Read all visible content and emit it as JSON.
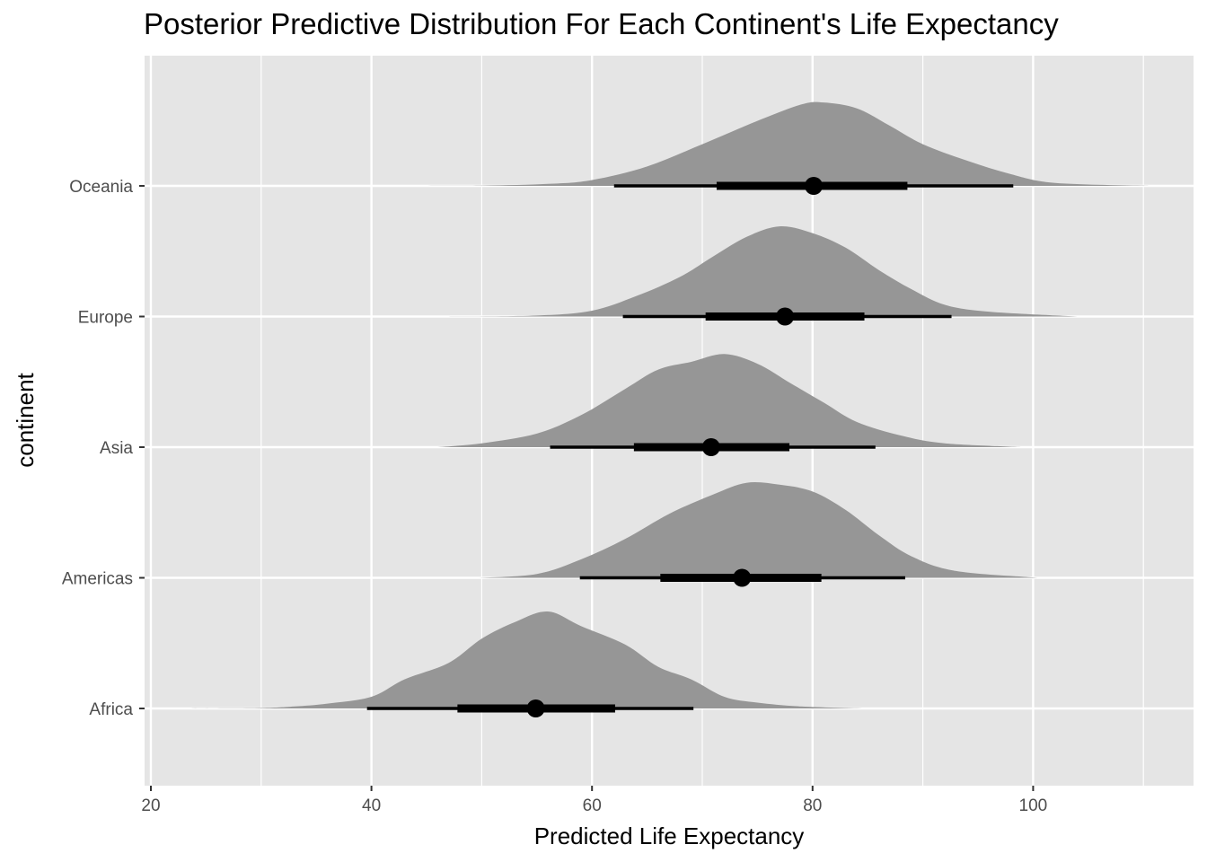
{
  "chart_data": {
    "type": "ridgeline-halfeye",
    "title": "Posterior Predictive Distribution For Each Continent's Life Expectancy",
    "xlabel": "Predicted Life Expectancy",
    "ylabel": "continent",
    "xlim": [
      19.5,
      114
    ],
    "x_ticks": [
      20,
      40,
      60,
      80,
      100
    ],
    "grid": true,
    "colors": {
      "panel": "#e5e5e5",
      "grid": "#ffffff",
      "density": "#969696",
      "interval": "#000000"
    },
    "categories": [
      "Africa",
      "Americas",
      "Asia",
      "Europe",
      "Oceania"
    ],
    "series": [
      {
        "name": "Africa",
        "median": 54.9,
        "interval_66": [
          47.8,
          62.1
        ],
        "interval_95": [
          39.6,
          69.2
        ],
        "density": [
          [
            23.5,
            0
          ],
          [
            30,
            0.005
          ],
          [
            33,
            0.02
          ],
          [
            36,
            0.05
          ],
          [
            40,
            0.12
          ],
          [
            43,
            0.3
          ],
          [
            47,
            0.47
          ],
          [
            50,
            0.72
          ],
          [
            53,
            0.89
          ],
          [
            56,
            1.0
          ],
          [
            59,
            0.85
          ],
          [
            63,
            0.66
          ],
          [
            66,
            0.43
          ],
          [
            69,
            0.3
          ],
          [
            72,
            0.12
          ],
          [
            75,
            0.06
          ],
          [
            79,
            0.02
          ],
          [
            84.5,
            0
          ]
        ]
      },
      {
        "name": "Americas",
        "median": 73.6,
        "interval_66": [
          66.2,
          80.8
        ],
        "interval_95": [
          58.9,
          88.4
        ],
        "density": [
          [
            49.8,
            0
          ],
          [
            55,
            0.04
          ],
          [
            59,
            0.19
          ],
          [
            63,
            0.4
          ],
          [
            67,
            0.66
          ],
          [
            71,
            0.86
          ],
          [
            74,
            0.98
          ],
          [
            77,
            0.96
          ],
          [
            80,
            0.89
          ],
          [
            83,
            0.7
          ],
          [
            86,
            0.44
          ],
          [
            89,
            0.22
          ],
          [
            93,
            0.07
          ],
          [
            100.5,
            0
          ]
        ]
      },
      {
        "name": "Asia",
        "median": 70.8,
        "interval_66": [
          63.8,
          77.9
        ],
        "interval_95": [
          56.2,
          85.7
        ],
        "density": [
          [
            46,
            0
          ],
          [
            50,
            0.04
          ],
          [
            55,
            0.14
          ],
          [
            59,
            0.33
          ],
          [
            63,
            0.6
          ],
          [
            66,
            0.8
          ],
          [
            69,
            0.88
          ],
          [
            72,
            0.96
          ],
          [
            75,
            0.86
          ],
          [
            78,
            0.66
          ],
          [
            81,
            0.46
          ],
          [
            84,
            0.26
          ],
          [
            88,
            0.12
          ],
          [
            92,
            0.04
          ],
          [
            99,
            0
          ]
        ]
      },
      {
        "name": "Europe",
        "median": 77.5,
        "interval_66": [
          70.3,
          84.7
        ],
        "interval_95": [
          62.8,
          92.6
        ],
        "density": [
          [
            47,
            0
          ],
          [
            55,
            0.01
          ],
          [
            60,
            0.06
          ],
          [
            64,
            0.21
          ],
          [
            68,
            0.41
          ],
          [
            71,
            0.62
          ],
          [
            74,
            0.82
          ],
          [
            77,
            0.93
          ],
          [
            80,
            0.86
          ],
          [
            83,
            0.71
          ],
          [
            86,
            0.48
          ],
          [
            89,
            0.28
          ],
          [
            92,
            0.12
          ],
          [
            96,
            0.05
          ],
          [
            104,
            0
          ]
        ]
      },
      {
        "name": "Oceania",
        "median": 80.1,
        "interval_66": [
          71.3,
          88.6
        ],
        "interval_95": [
          62.0,
          98.2
        ],
        "density": [
          [
            42.5,
            0
          ],
          [
            50,
            0.003
          ],
          [
            56,
            0.02
          ],
          [
            60,
            0.06
          ],
          [
            65,
            0.2
          ],
          [
            70,
            0.43
          ],
          [
            75,
            0.67
          ],
          [
            79,
            0.84
          ],
          [
            81,
            0.86
          ],
          [
            84,
            0.8
          ],
          [
            87,
            0.62
          ],
          [
            90,
            0.43
          ],
          [
            94,
            0.26
          ],
          [
            98,
            0.12
          ],
          [
            102,
            0.03
          ],
          [
            110.5,
            0
          ]
        ]
      }
    ]
  }
}
